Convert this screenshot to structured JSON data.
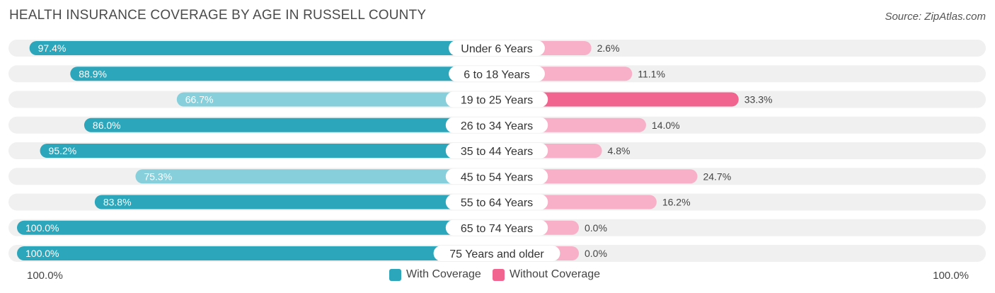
{
  "title": "HEALTH INSURANCE COVERAGE BY AGE IN RUSSELL COUNTY",
  "source": "Source: ZipAtlas.com",
  "colors": {
    "with_dark": "#2ba6bb",
    "with_light": "#86cfdb",
    "without_dark": "#f0648f",
    "without_light": "#f7b0c7",
    "track": "#f0f0f0"
  },
  "legend": {
    "with": "With Coverage",
    "without": "Without Coverage"
  },
  "axis": {
    "left": "100.0%",
    "right": "100.0%"
  },
  "chart_data": {
    "type": "bar",
    "orientation": "horizontal-diverging",
    "title": "HEALTH INSURANCE COVERAGE BY AGE IN RUSSELL COUNTY",
    "categories": [
      "Under 6 Years",
      "6 to 18 Years",
      "19 to 25 Years",
      "26 to 34 Years",
      "35 to 44 Years",
      "45 to 54 Years",
      "55 to 64 Years",
      "65 to 74 Years",
      "75 Years and older"
    ],
    "series": [
      {
        "name": "With Coverage",
        "values": [
          97.4,
          88.9,
          66.7,
          86.0,
          95.2,
          75.3,
          83.8,
          100.0,
          100.0
        ],
        "labels": [
          "97.4%",
          "88.9%",
          "66.7%",
          "86.0%",
          "95.2%",
          "75.3%",
          "83.8%",
          "100.0%",
          "100.0%"
        ]
      },
      {
        "name": "Without Coverage",
        "values": [
          2.6,
          11.1,
          33.3,
          14.0,
          4.8,
          24.7,
          16.2,
          0.0,
          0.0
        ],
        "labels": [
          "2.6%",
          "11.1%",
          "33.3%",
          "14.0%",
          "4.8%",
          "24.7%",
          "16.2%",
          "0.0%",
          "0.0%"
        ]
      }
    ],
    "xlim": [
      -100,
      100
    ],
    "legend_position": "bottom-center"
  }
}
